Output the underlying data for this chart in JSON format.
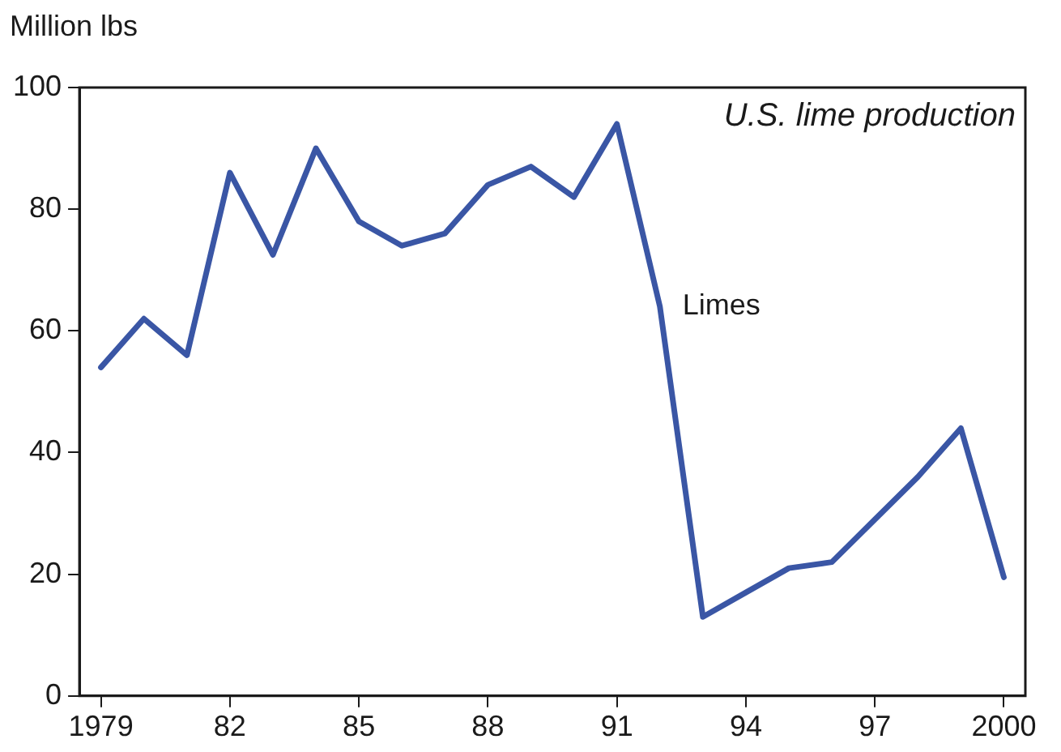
{
  "chart_data": {
    "type": "line",
    "ylabel": "Million lbs",
    "annotations": [
      "U.S. lime production"
    ],
    "x": [
      1979,
      1980,
      1981,
      1982,
      1983,
      1984,
      1985,
      1986,
      1987,
      1988,
      1989,
      1990,
      1991,
      1992,
      1993,
      1994,
      1995,
      1996,
      1997,
      1998,
      1999,
      2000
    ],
    "series": [
      {
        "name": "Limes",
        "color": "#3a56a5",
        "values": [
          54,
          62,
          56,
          86,
          72.5,
          90,
          78,
          74,
          76,
          84,
          87,
          82,
          94,
          64,
          13,
          17,
          21,
          22,
          29,
          36,
          44,
          19.5
        ]
      }
    ],
    "xlim": [
      1978.5,
      2000.5
    ],
    "xticks": [
      1979,
      {
        "value": 1982,
        "label": "82"
      },
      {
        "value": 1985,
        "label": "85"
      },
      {
        "value": 1988,
        "label": "88"
      },
      {
        "value": 1991,
        "label": "91"
      },
      {
        "value": 1994,
        "label": "94"
      },
      {
        "value": 1997,
        "label": "97"
      },
      2000
    ],
    "ylim": [
      0,
      100
    ],
    "yticks": [
      0,
      20,
      40,
      60,
      80,
      100
    ],
    "grid": false,
    "legend": false,
    "marker": "none",
    "line_style": "solid"
  }
}
